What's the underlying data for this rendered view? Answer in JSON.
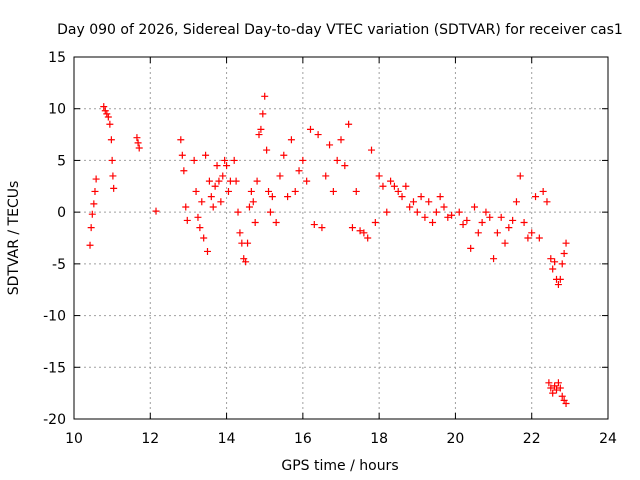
{
  "chart_data": {
    "type": "scatter",
    "title": "Day 090 of 2026, Sidereal Day-to-day VTEC variation (SDTVAR) for receiver cas1",
    "xlabel": "GPS time / hours",
    "ylabel": "SDTVAR / TECUs",
    "xlim": [
      10,
      24
    ],
    "ylim": [
      -20,
      15
    ],
    "xticks": [
      10,
      12,
      14,
      16,
      18,
      20,
      22,
      24
    ],
    "yticks": [
      -20,
      -15,
      -10,
      -5,
      0,
      5,
      10,
      15
    ],
    "xtick_labels": [
      "10",
      "12",
      "14",
      "16",
      "18",
      "20",
      "22",
      "24"
    ],
    "ytick_labels": [
      "-20",
      "-15",
      "-10",
      "-5",
      "0",
      "5",
      "10",
      "15"
    ],
    "grid": true,
    "marker": "+",
    "marker_color": "#ff0000",
    "series": [
      {
        "name": "cas1",
        "x": [
          10.42,
          10.45,
          10.48,
          10.52,
          10.55,
          10.58,
          10.78,
          10.82,
          10.86,
          10.9,
          10.94,
          10.98,
          11.0,
          11.02,
          11.04,
          11.65,
          11.68,
          11.71,
          12.15,
          12.8,
          12.84,
          12.88,
          12.93,
          12.97,
          13.15,
          13.2,
          13.25,
          13.3,
          13.35,
          13.4,
          13.45,
          13.5,
          13.55,
          13.6,
          13.65,
          13.7,
          13.75,
          13.8,
          13.85,
          13.9,
          13.95,
          14.0,
          14.05,
          14.1,
          14.2,
          14.25,
          14.3,
          14.35,
          14.4,
          14.45,
          14.5,
          14.55,
          14.6,
          14.65,
          14.7,
          14.75,
          14.8,
          14.85,
          14.9,
          14.95,
          15.0,
          15.05,
          15.1,
          15.15,
          15.2,
          15.3,
          15.4,
          15.5,
          15.6,
          15.7,
          15.8,
          15.9,
          16.0,
          16.1,
          16.2,
          16.3,
          16.4,
          16.5,
          16.6,
          16.7,
          16.8,
          16.9,
          17.0,
          17.1,
          17.2,
          17.3,
          17.4,
          17.5,
          17.6,
          17.7,
          17.8,
          17.9,
          18.0,
          18.1,
          18.2,
          18.3,
          18.4,
          18.5,
          18.6,
          18.7,
          18.8,
          18.9,
          19.0,
          19.1,
          19.2,
          19.3,
          19.4,
          19.5,
          19.6,
          19.7,
          19.8,
          19.9,
          20.1,
          20.2,
          20.3,
          20.4,
          20.5,
          20.6,
          20.7,
          20.8,
          20.9,
          21.0,
          21.1,
          21.2,
          21.3,
          21.4,
          21.5,
          21.6,
          21.7,
          21.8,
          21.9,
          22.0,
          22.1,
          22.2,
          22.3,
          22.4,
          22.5,
          22.55,
          22.6,
          22.65,
          22.7,
          22.75,
          22.8,
          22.85,
          22.9,
          22.45,
          22.5,
          22.55,
          22.6,
          22.65,
          22.7,
          22.75,
          22.8,
          22.85,
          22.9
        ],
        "y": [
          -3.2,
          -1.5,
          -0.2,
          0.8,
          2.0,
          3.2,
          10.2,
          9.8,
          9.5,
          9.2,
          8.5,
          7.0,
          5.0,
          3.5,
          2.3,
          7.2,
          6.7,
          6.2,
          0.1,
          7.0,
          5.5,
          4.0,
          0.5,
          -0.8,
          5.0,
          2.0,
          -0.5,
          -1.5,
          1.0,
          -2.5,
          5.5,
          -3.8,
          3.0,
          1.5,
          0.5,
          2.5,
          4.5,
          3.0,
          1.0,
          3.5,
          5.0,
          4.5,
          2.0,
          3.0,
          5.0,
          3.0,
          0.0,
          -2.0,
          -3.0,
          -4.5,
          -4.8,
          -3.0,
          0.5,
          2.0,
          1.0,
          -1.0,
          3.0,
          7.5,
          8.0,
          9.5,
          11.2,
          6.0,
          2.0,
          0.0,
          1.5,
          -1.0,
          3.5,
          5.5,
          1.5,
          7.0,
          2.0,
          4.0,
          5.0,
          3.0,
          8.0,
          -1.2,
          7.5,
          -1.5,
          3.5,
          6.5,
          2.0,
          5.0,
          7.0,
          4.5,
          8.5,
          -1.5,
          2.0,
          -1.8,
          -2.0,
          -2.5,
          6.0,
          -1.0,
          3.5,
          2.5,
          0.0,
          3.0,
          2.5,
          2.0,
          1.5,
          2.5,
          0.5,
          1.0,
          0.0,
          1.5,
          -0.5,
          1.0,
          -1.0,
          0.0,
          1.5,
          0.5,
          -0.5,
          -0.3,
          0.0,
          -1.2,
          -0.8,
          -3.5,
          0.5,
          -2.0,
          -1.0,
          0.0,
          -0.5,
          -4.5,
          -2.0,
          -0.5,
          -3.0,
          -1.5,
          -0.8,
          1.0,
          3.5,
          -1.0,
          -2.5,
          -2.0,
          1.5,
          -2.5,
          2.0,
          1.0,
          -4.5,
          -5.5,
          -4.8,
          -6.5,
          -7.0,
          -6.5,
          -5.0,
          -4.0,
          -3.0,
          -16.5,
          -17.0,
          -17.5,
          -16.8,
          -17.2,
          -16.5,
          -17.0,
          -17.8,
          -18.2,
          -18.5
        ]
      }
    ]
  }
}
